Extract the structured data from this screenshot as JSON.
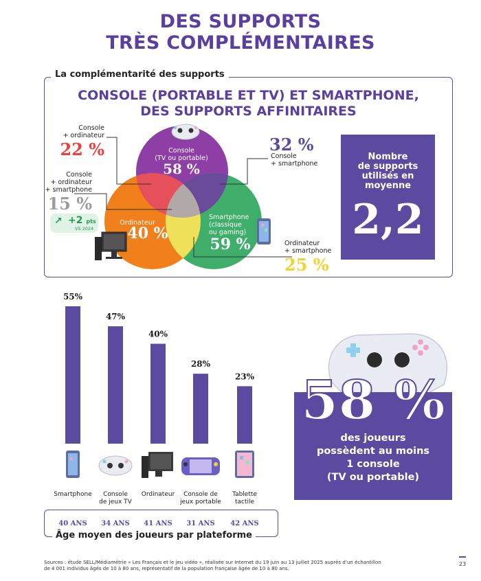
{
  "title_lines": [
    "DES SUPPORTS",
    "TRÈS COMPLÉMENTAIRES"
  ],
  "section1": {
    "label": "La complémentarité des supports",
    "subtitle_lines": [
      "CONSOLE (PORTABLE ET TV) ET SMARTPHONE,",
      "DES SUPPORTS AFFINITAIRES"
    ],
    "venn": {
      "console": {
        "label_lines": [
          "Console",
          "(TV ou portable)"
        ],
        "value": "58 %"
      },
      "ordinateur": {
        "label": "Ordinateur",
        "value": "40 %"
      },
      "smartphone": {
        "label_lines": [
          "Smartphone",
          "(classique",
          "ou gaming)"
        ],
        "value": "59 %"
      },
      "console_ordinateur": {
        "label_lines": [
          "Console",
          "+ ordinateur"
        ],
        "value": "22 %"
      },
      "console_ordinateur_smartphone": {
        "label_lines": [
          "Console",
          "+ ordinateur",
          "+ smartphone"
        ],
        "value": "15 %"
      },
      "console_smartphone": {
        "label_lines": [
          "Console",
          "+ smartphone"
        ],
        "value": "32 %"
      },
      "ordinateur_smartphone": {
        "label_lines": [
          "Ordinateur",
          "+ smartphone"
        ],
        "value": "25 %"
      }
    },
    "evolution_badge": {
      "value": "+2",
      "unit": "pts",
      "note": "VS 2024"
    },
    "stat": {
      "text_lines": [
        "Nombre",
        "de supports",
        "utilisés en",
        "moyenne"
      ],
      "value": "2,2"
    },
    "colors": {
      "console": "#8e3fa6",
      "ordinateur": "#f07f1c",
      "smartphone": "#3fae6a",
      "intersection_co": "#e6505a",
      "intersection_cs": "#6a4a9a",
      "intersection_os": "#efe05a",
      "center": "#b0a9a7",
      "accent": "#5a3fa0",
      "red": "#e8413f",
      "gray": "#9c9c9c",
      "yellow": "#f2d22e"
    }
  },
  "chart_data": {
    "type": "bar",
    "categories": [
      "Smartphone",
      "Console de jeux TV",
      "Ordinateur",
      "Console de jeux portable",
      "Tablette tactile"
    ],
    "category_label_lines": [
      [
        "Smartphone"
      ],
      [
        "Console",
        "de jeux TV"
      ],
      [
        "Ordinateur"
      ],
      [
        "Console de",
        "jeux portable"
      ],
      [
        "Tablette",
        "tactile"
      ]
    ],
    "values": [
      55,
      47,
      40,
      28,
      23
    ],
    "value_labels": [
      "55%",
      "47%",
      "40%",
      "28%",
      "23%"
    ],
    "ages": [
      "40 ANS",
      "34 ANS",
      "41 ANS",
      "31 ANS",
      "42 ANS"
    ],
    "age_caption": "Âge moyen des joueurs par plateforme",
    "ylim": [
      0,
      55
    ],
    "bar_color": "#5a4aa0",
    "icons": [
      "smartphone-icon",
      "gamepad-icon",
      "computer-icon",
      "handheld-console-icon",
      "tablet-icon"
    ]
  },
  "console_stat": {
    "value": "58 %",
    "text_lines": [
      "des joueurs",
      "possèdent au moins",
      "1 console",
      "(TV ou portable)"
    ]
  },
  "sources_lines": [
    "Sources : étude SELL/Médiamétrie « Les Français et le jeu vidéo », réalisée sur Internet du 19 juin au 13 juillet 2025 auprès d’un échantillon",
    "de 4 001 individus âgés de 10 à 80 ans, représentatif de la population française âgée de 10 à 80 ans."
  ],
  "page_number": "23"
}
